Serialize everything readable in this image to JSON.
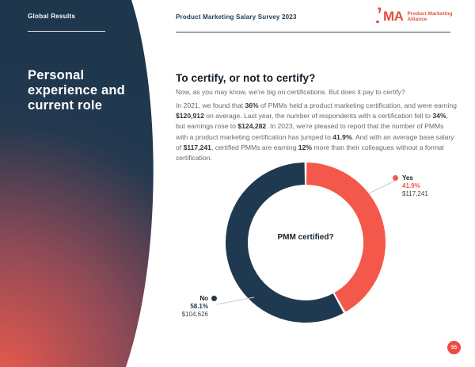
{
  "header": {
    "section_label": "Global Results",
    "report_title": "Product Marketing Salary Survey 2023",
    "logo": {
      "acronym": "MA",
      "name_line1": "Product Marketing",
      "name_line2": "Alliance"
    }
  },
  "sidebar": {
    "title": "Personal experience and current role"
  },
  "main": {
    "heading": "To certify, or not to certify?",
    "intro": "Now, as you may know, we're big on certifications. But does it pay to certify?",
    "paragraph_segments": [
      {
        "text": "In 2021, we found that ",
        "bold": false
      },
      {
        "text": "36%",
        "bold": true
      },
      {
        "text": " of PMMs held a product marketing certification, and were earning ",
        "bold": false
      },
      {
        "text": "$120,912",
        "bold": true
      },
      {
        "text": " on average. Last year, the number of respondents with a certification fell to ",
        "bold": false
      },
      {
        "text": "34%",
        "bold": true
      },
      {
        "text": ", but earnings rose to ",
        "bold": false
      },
      {
        "text": "$124,282",
        "bold": true
      },
      {
        "text": ". In 2023, we're pleased to report that the number of PMMs with a product marketing certification has jumped to ",
        "bold": false
      },
      {
        "text": "41.9%",
        "bold": true
      },
      {
        "text": ". And with an average base salary of ",
        "bold": false
      },
      {
        "text": "$117,241",
        "bold": true
      },
      {
        "text": ", certified PMMs are earning ",
        "bold": false
      },
      {
        "text": "12%",
        "bold": true
      },
      {
        "text": " more than their colleagues without a formal certification.",
        "bold": false
      }
    ]
  },
  "chart_data": {
    "type": "pie",
    "variant": "donut",
    "title": "PMM certified?",
    "direction": "clockwise",
    "start_angle_deg": 0,
    "slices": [
      {
        "label": "Yes",
        "value": 41.9,
        "pct_label": "41.9%",
        "salary": "$117,241",
        "color": "#f4584a"
      },
      {
        "label": "No",
        "value": 58.1,
        "pct_label": "58.1%",
        "salary": "$104,626",
        "color": "#1f3950"
      }
    ]
  },
  "page": {
    "number": "55"
  },
  "colors": {
    "navy": "#1f3950",
    "coral": "#f4584a",
    "logo_red": "#e34f3f",
    "badge": "#ee4b42",
    "gradient_bottom": "#e7594c"
  }
}
